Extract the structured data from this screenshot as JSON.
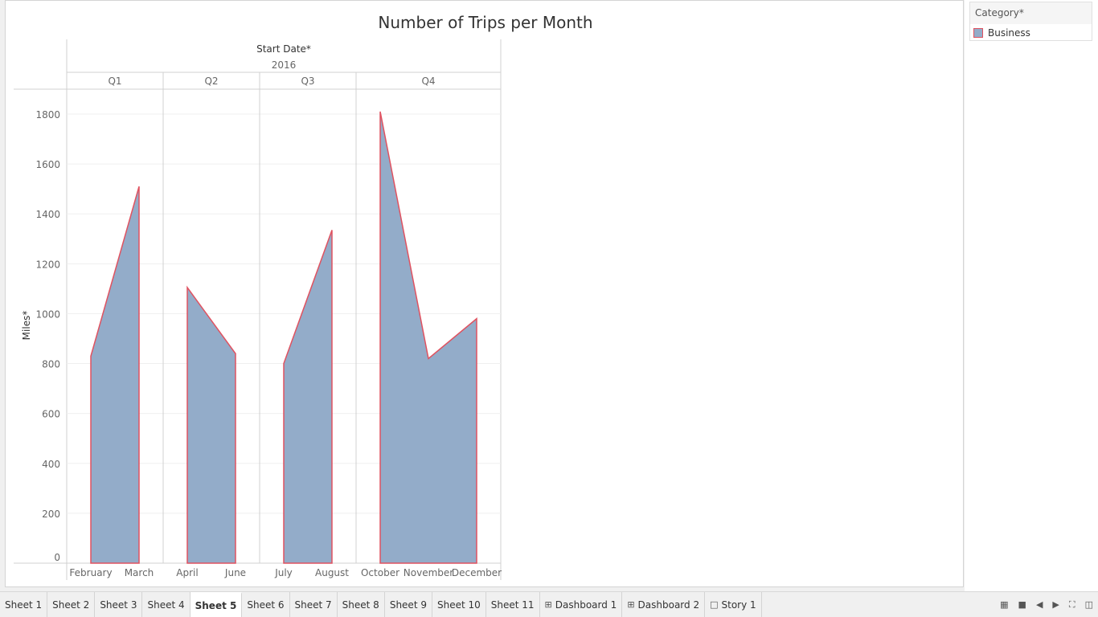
{
  "chart_data": {
    "type": "area",
    "title": "Number of Trips per Month",
    "column_header": "Start Date*",
    "year": "2016",
    "ylabel": "Miles*",
    "ylim": [
      0,
      1900
    ],
    "yticks": [
      0,
      200,
      400,
      600,
      800,
      1000,
      1200,
      1400,
      1600,
      1800
    ],
    "grid": true,
    "legend_position": "top-right",
    "legend_title": "Category*",
    "quarters": [
      {
        "label": "Q1",
        "months": [
          "February",
          "March"
        ],
        "values": [
          830,
          1510
        ]
      },
      {
        "label": "Q2",
        "months": [
          "April",
          "June"
        ],
        "values": [
          1105,
          840
        ]
      },
      {
        "label": "Q3",
        "months": [
          "July",
          "August"
        ],
        "values": [
          800,
          1335
        ]
      },
      {
        "label": "Q4",
        "months": [
          "October",
          "November",
          "December"
        ],
        "values": [
          1810,
          820,
          980
        ]
      }
    ],
    "series": [
      {
        "name": "Business",
        "fill": "#93acc9",
        "stroke": "#e05260"
      }
    ]
  },
  "legend": {
    "title": "Category*",
    "items": [
      {
        "label": "Business",
        "color": "#93acc9",
        "border": "#e05260"
      }
    ]
  },
  "tabs": [
    {
      "label": "Sheet 1",
      "icon": ""
    },
    {
      "label": "Sheet 2",
      "icon": ""
    },
    {
      "label": "Sheet 3",
      "icon": ""
    },
    {
      "label": "Sheet 4",
      "icon": ""
    },
    {
      "label": "Sheet 5",
      "icon": "",
      "active": true
    },
    {
      "label": "Sheet 6",
      "icon": ""
    },
    {
      "label": "Sheet 7",
      "icon": ""
    },
    {
      "label": "Sheet 8",
      "icon": ""
    },
    {
      "label": "Sheet 9",
      "icon": ""
    },
    {
      "label": "Sheet 10",
      "icon": ""
    },
    {
      "label": "Sheet 11",
      "icon": ""
    },
    {
      "label": "Dashboard 1",
      "icon": "dashboard-icon"
    },
    {
      "label": "Dashboard 2",
      "icon": "dashboard-icon"
    },
    {
      "label": "Story 1",
      "icon": "story-icon"
    }
  ],
  "controls": [
    "sheet-sorter-icon",
    "filmstrip-icon",
    "prev-icon",
    "next-icon",
    "fullscreen-icon",
    "presentation-icon"
  ]
}
